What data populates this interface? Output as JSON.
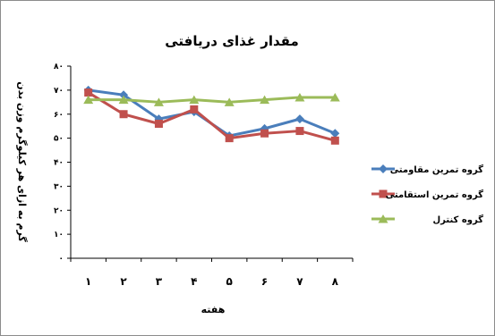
{
  "chart_data": {
    "type": "line",
    "title": "مقدار غذای دریافتی",
    "xlabel": "هفته",
    "ylabel": "گرم به ازای هر کیلوگرم وزن بدن",
    "categories": [
      "1",
      "2",
      "3",
      "4",
      "5",
      "6",
      "7",
      "8"
    ],
    "ylim": [
      0,
      80
    ],
    "yticks": [
      "0",
      "10",
      "20",
      "30",
      "40",
      "50",
      "60",
      "70",
      "80"
    ],
    "ytick_labels": [
      "٠",
      "١٠",
      "٢٠",
      "٣٠",
      "۴٠",
      "۵٠",
      "۶٠",
      "٧٠",
      "٨٠"
    ],
    "xtick_labels": [
      "١",
      "٢",
      "٣",
      "۴",
      "۵",
      "۶",
      "٧",
      "٨"
    ],
    "grid": false,
    "legend_position": "right",
    "series": [
      {
        "name": "گروه تمرین مقاومتی",
        "color": "#4a7ebb",
        "marker": "diamond",
        "values": [
          70,
          68,
          58,
          61,
          51,
          54,
          58,
          52
        ]
      },
      {
        "name": "گروه تمرین استقامتی",
        "color": "#c0504d",
        "marker": "square",
        "values": [
          69,
          60,
          56,
          62,
          50,
          52,
          53,
          49
        ]
      },
      {
        "name": "گروه کنترل",
        "color": "#9bbb59",
        "marker": "triangle",
        "values": [
          66,
          66,
          65,
          66,
          65,
          66,
          67,
          67
        ]
      }
    ]
  }
}
